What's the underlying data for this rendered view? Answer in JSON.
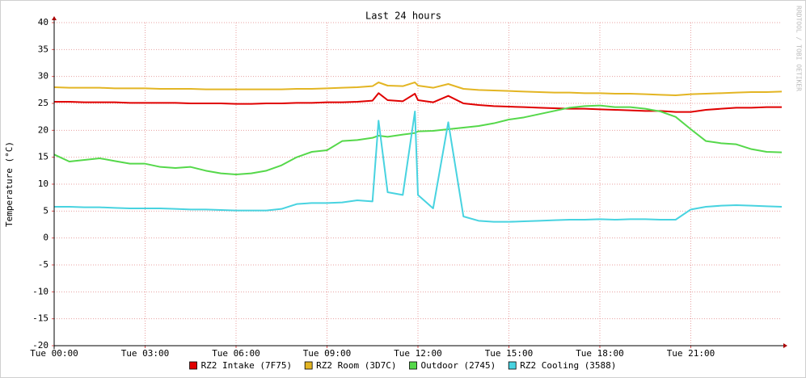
{
  "chart_data": {
    "type": "line",
    "title": "Last 24 hours",
    "y_label": "Temperature (°C)",
    "watermark": "RRDTOOL / TOBI OETIKER",
    "x": [
      0,
      0.5,
      1,
      1.5,
      2,
      2.5,
      3,
      3.5,
      4,
      4.5,
      5,
      5.5,
      6,
      6.5,
      7,
      7.5,
      8,
      8.5,
      9,
      9.5,
      10,
      10.5,
      10.7,
      11,
      11.5,
      11.9,
      12,
      12.5,
      13,
      13.5,
      14,
      14.5,
      15,
      15.5,
      16,
      16.5,
      17,
      17.5,
      18,
      18.5,
      19,
      19.5,
      20,
      20.5,
      21,
      21.5,
      22,
      22.5,
      23,
      23.5,
      24
    ],
    "xlim": [
      0,
      24
    ],
    "xticks": [
      {
        "value": 0,
        "label": "Tue 00:00"
      },
      {
        "value": 3,
        "label": "Tue 03:00"
      },
      {
        "value": 6,
        "label": "Tue 06:00"
      },
      {
        "value": 9,
        "label": "Tue 09:00"
      },
      {
        "value": 12,
        "label": "Tue 12:00"
      },
      {
        "value": 15,
        "label": "Tue 15:00"
      },
      {
        "value": 18,
        "label": "Tue 18:00"
      },
      {
        "value": 21,
        "label": "Tue 21:00"
      }
    ],
    "ylim": [
      -20,
      40
    ],
    "yticks": [
      -20,
      -15,
      -10,
      -5,
      0,
      5,
      10,
      15,
      20,
      25,
      30,
      35,
      40
    ],
    "grid": true,
    "legend": "bottom",
    "series": [
      {
        "name": "RZ2 Intake (7F75)",
        "color": "#e00000",
        "values": [
          25.3,
          25.3,
          25.2,
          25.2,
          25.2,
          25.1,
          25.1,
          25.1,
          25.1,
          25,
          25,
          25,
          24.9,
          24.9,
          25,
          25,
          25.1,
          25.1,
          25.2,
          25.2,
          25.3,
          25.5,
          26.9,
          25.6,
          25.4,
          26.8,
          25.6,
          25.2,
          26.4,
          25,
          24.7,
          24.5,
          24.4,
          24.3,
          24.2,
          24.1,
          24,
          24,
          23.9,
          23.8,
          23.7,
          23.6,
          23.6,
          23.4,
          23.4,
          23.8,
          24,
          24.2,
          24.2,
          24.3,
          24.3
        ]
      },
      {
        "name": "RZ2 Room (3D7C)",
        "color": "#e3b523",
        "values": [
          28,
          27.9,
          27.9,
          27.9,
          27.8,
          27.8,
          27.8,
          27.7,
          27.7,
          27.7,
          27.6,
          27.6,
          27.6,
          27.6,
          27.6,
          27.6,
          27.7,
          27.7,
          27.8,
          27.9,
          28,
          28.2,
          28.9,
          28.3,
          28.2,
          28.9,
          28.3,
          27.9,
          28.6,
          27.7,
          27.5,
          27.4,
          27.3,
          27.2,
          27.1,
          27,
          27,
          26.9,
          26.9,
          26.8,
          26.8,
          26.7,
          26.6,
          26.5,
          26.7,
          26.8,
          26.9,
          27,
          27.1,
          27.1,
          27.2
        ]
      },
      {
        "name": "Outdoor (2745)",
        "color": "#55d84a",
        "values": [
          15.5,
          14.2,
          14.5,
          14.8,
          14.3,
          13.8,
          13.8,
          13.2,
          13,
          13.2,
          12.5,
          12,
          11.8,
          12,
          12.5,
          13.5,
          15,
          16,
          16.3,
          18,
          18.2,
          18.6,
          19,
          18.8,
          19.2,
          19.5,
          19.8,
          19.9,
          20.2,
          20.5,
          20.8,
          21.3,
          22,
          22.4,
          23,
          23.6,
          24.2,
          24.5,
          24.6,
          24.3,
          24.3,
          24,
          23.5,
          22.5,
          20.2,
          18,
          17.6,
          17.4,
          16.5,
          16,
          15.9
        ]
      },
      {
        "name": "RZ2 Cooling (3588)",
        "color": "#48d3e0",
        "values": [
          5.8,
          5.8,
          5.7,
          5.7,
          5.6,
          5.5,
          5.5,
          5.5,
          5.4,
          5.3,
          5.3,
          5.2,
          5.1,
          5.1,
          5.1,
          5.4,
          6.3,
          6.5,
          6.5,
          6.6,
          7,
          6.8,
          21.8,
          8.5,
          8,
          23.5,
          8,
          5.5,
          21.5,
          4,
          3.2,
          3,
          3,
          3.1,
          3.2,
          3.3,
          3.4,
          3.4,
          3.5,
          3.4,
          3.5,
          3.5,
          3.4,
          3.4,
          5.3,
          5.8,
          6,
          6.1,
          6,
          5.9,
          5.8
        ]
      }
    ]
  }
}
